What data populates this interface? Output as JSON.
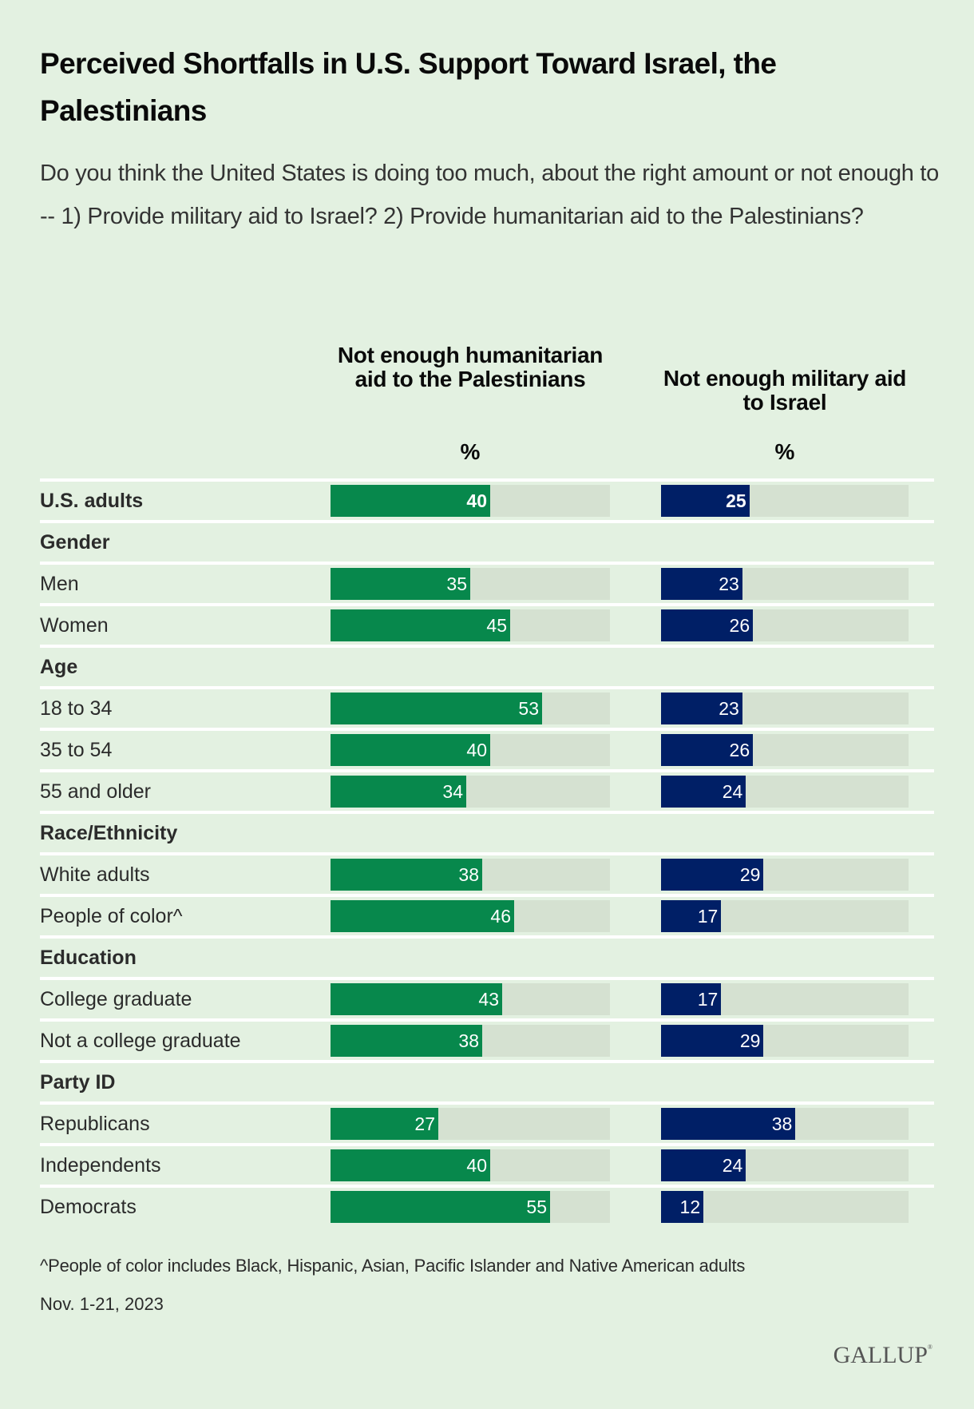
{
  "header": {
    "title": "Perceived Shortfalls in U.S. Support Toward Israel, the Palestinians",
    "subtitle": "Do you think the United States is doing too much, about the right amount or not enough to -- 1) Provide military aid to Israel? 2) Provide humanitarian aid to the Palestinians?"
  },
  "columns": [
    {
      "label": "Not enough humanitarian aid to the Palestinians",
      "unit": "%",
      "color": "#07884c"
    },
    {
      "label": "Not enough military aid to Israel",
      "unit": "%",
      "color": "#001f66"
    }
  ],
  "footer": {
    "footnote": "^People of color includes Black, Hispanic, Asian, Pacific Islander and Native American adults",
    "date": "Nov. 1-21, 2023",
    "logo": "GALLUP"
  },
  "chart_data": {
    "type": "bar",
    "orientation": "horizontal",
    "title": "Perceived Shortfalls in U.S. Support Toward Israel, the Palestinians",
    "subtitle": "Do you think the United States is doing too much, about the right amount or not enough to -- 1) Provide military aid to Israel? 2) Provide humanitarian aid to the Palestinians?",
    "unit": "%",
    "xlim": [
      0,
      70
    ],
    "grid": false,
    "legend": "column headers",
    "series": [
      {
        "name": "Not enough humanitarian aid to the Palestinians",
        "color": "#07884c"
      },
      {
        "name": "Not enough military aid to Israel",
        "color": "#001f66"
      }
    ],
    "rows": [
      {
        "label": "U.S. adults",
        "type": "total",
        "values": [
          40,
          25
        ]
      },
      {
        "label": "Gender",
        "type": "group"
      },
      {
        "label": "Men",
        "type": "item",
        "values": [
          35,
          23
        ]
      },
      {
        "label": "Women",
        "type": "item",
        "values": [
          45,
          26
        ]
      },
      {
        "label": "Age",
        "type": "group"
      },
      {
        "label": "18 to 34",
        "type": "item",
        "values": [
          53,
          23
        ]
      },
      {
        "label": "35 to 54",
        "type": "item",
        "values": [
          40,
          26
        ]
      },
      {
        "label": "55 and older",
        "type": "item",
        "values": [
          34,
          24
        ]
      },
      {
        "label": "Race/Ethnicity",
        "type": "group"
      },
      {
        "label": "White adults",
        "type": "item",
        "values": [
          38,
          29
        ]
      },
      {
        "label": "People of color^",
        "type": "item",
        "values": [
          46,
          17
        ]
      },
      {
        "label": "Education",
        "type": "group"
      },
      {
        "label": "College graduate",
        "type": "item",
        "values": [
          43,
          17
        ]
      },
      {
        "label": "Not a college graduate",
        "type": "item",
        "values": [
          38,
          29
        ]
      },
      {
        "label": "Party ID",
        "type": "group"
      },
      {
        "label": "Republicans",
        "type": "item",
        "values": [
          27,
          38
        ]
      },
      {
        "label": "Independents",
        "type": "item",
        "values": [
          40,
          24
        ]
      },
      {
        "label": "Democrats",
        "type": "item",
        "values": [
          55,
          12
        ]
      }
    ]
  }
}
